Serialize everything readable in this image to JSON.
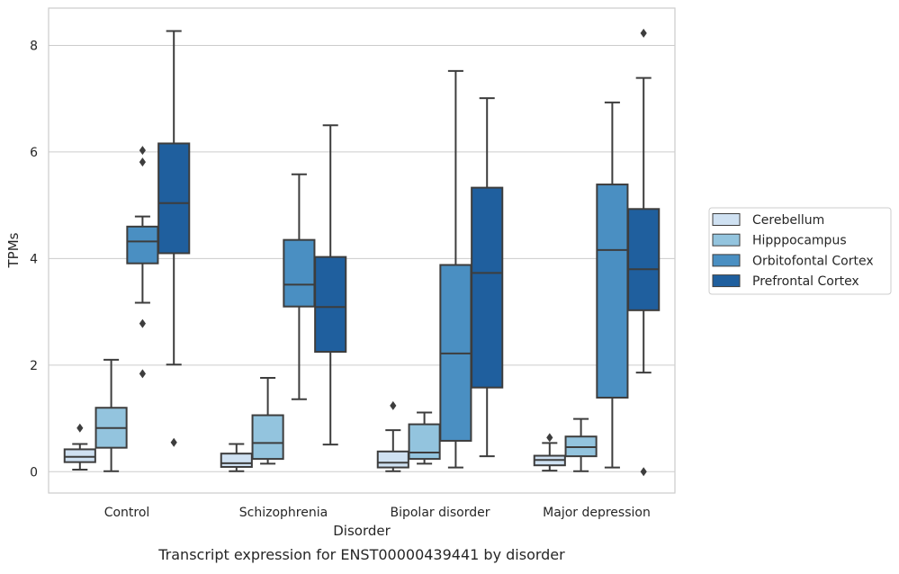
{
  "chart_data": {
    "type": "box",
    "title": "",
    "caption": "Transcript expression for ENST00000439441 by disorder",
    "xlabel": "Disorder",
    "ylabel": "TPMs",
    "ylim": [
      -0.4,
      8.7
    ],
    "yticks": [
      0,
      2,
      4,
      6,
      8
    ],
    "grid": "horizontal",
    "legend_position": "right",
    "categories": [
      "Control",
      "Schizophrenia",
      "Bipolar disorder",
      "Major depression"
    ],
    "series": [
      {
        "name": "Cerebellum",
        "color": "#cfe1f2",
        "boxes": [
          {
            "whislo": 0.04,
            "q1": 0.18,
            "med": 0.28,
            "q3": 0.42,
            "whishi": 0.52,
            "fliers": [
              0.82
            ]
          },
          {
            "whislo": 0.01,
            "q1": 0.09,
            "med": 0.16,
            "q3": 0.34,
            "whishi": 0.52,
            "fliers": []
          },
          {
            "whislo": 0.01,
            "q1": 0.08,
            "med": 0.17,
            "q3": 0.38,
            "whishi": 0.78,
            "fliers": [
              1.24
            ]
          },
          {
            "whislo": 0.02,
            "q1": 0.12,
            "med": 0.22,
            "q3": 0.3,
            "whishi": 0.54,
            "fliers": [
              0.64
            ]
          }
        ]
      },
      {
        "name": "Hipppocampus",
        "color": "#93c4de",
        "boxes": [
          {
            "whislo": 0.01,
            "q1": 0.45,
            "med": 0.82,
            "q3": 1.2,
            "whishi": 2.1,
            "fliers": []
          },
          {
            "whislo": 0.15,
            "q1": 0.24,
            "med": 0.54,
            "q3": 1.06,
            "whishi": 1.76,
            "fliers": []
          },
          {
            "whislo": 0.15,
            "q1": 0.24,
            "med": 0.36,
            "q3": 0.89,
            "whishi": 1.11,
            "fliers": []
          },
          {
            "whislo": 0.01,
            "q1": 0.29,
            "med": 0.46,
            "q3": 0.66,
            "whishi": 0.99,
            "fliers": []
          }
        ]
      },
      {
        "name": "Orbitofontal Cortex",
        "color": "#4a8fc2",
        "boxes": [
          {
            "whislo": 3.17,
            "q1": 3.91,
            "med": 4.32,
            "q3": 4.6,
            "whishi": 4.79,
            "fliers": [
              6.03,
              5.81,
              2.78,
              1.84
            ]
          },
          {
            "whislo": 1.36,
            "q1": 3.1,
            "med": 3.51,
            "q3": 4.35,
            "whishi": 5.58,
            "fliers": []
          },
          {
            "whislo": 0.08,
            "q1": 0.58,
            "med": 2.22,
            "q3": 3.88,
            "whishi": 7.52,
            "fliers": []
          },
          {
            "whislo": 0.08,
            "q1": 1.39,
            "med": 4.16,
            "q3": 5.39,
            "whishi": 6.93,
            "fliers": []
          }
        ]
      },
      {
        "name": "Prefrontal Cortex",
        "color": "#1f5f9e",
        "boxes": [
          {
            "whislo": 2.01,
            "q1": 4.1,
            "med": 5.04,
            "q3": 6.16,
            "whishi": 8.27,
            "fliers": [
              0.55
            ]
          },
          {
            "whislo": 0.51,
            "q1": 2.25,
            "med": 3.09,
            "q3": 4.03,
            "whishi": 6.5,
            "fliers": []
          },
          {
            "whislo": 0.29,
            "q1": 1.58,
            "med": 3.73,
            "q3": 5.33,
            "whishi": 7.01,
            "fliers": []
          },
          {
            "whislo": 1.86,
            "q1": 3.03,
            "med": 3.8,
            "q3": 4.93,
            "whishi": 7.39,
            "fliers": [
              0.0,
              8.23
            ]
          }
        ]
      }
    ]
  }
}
